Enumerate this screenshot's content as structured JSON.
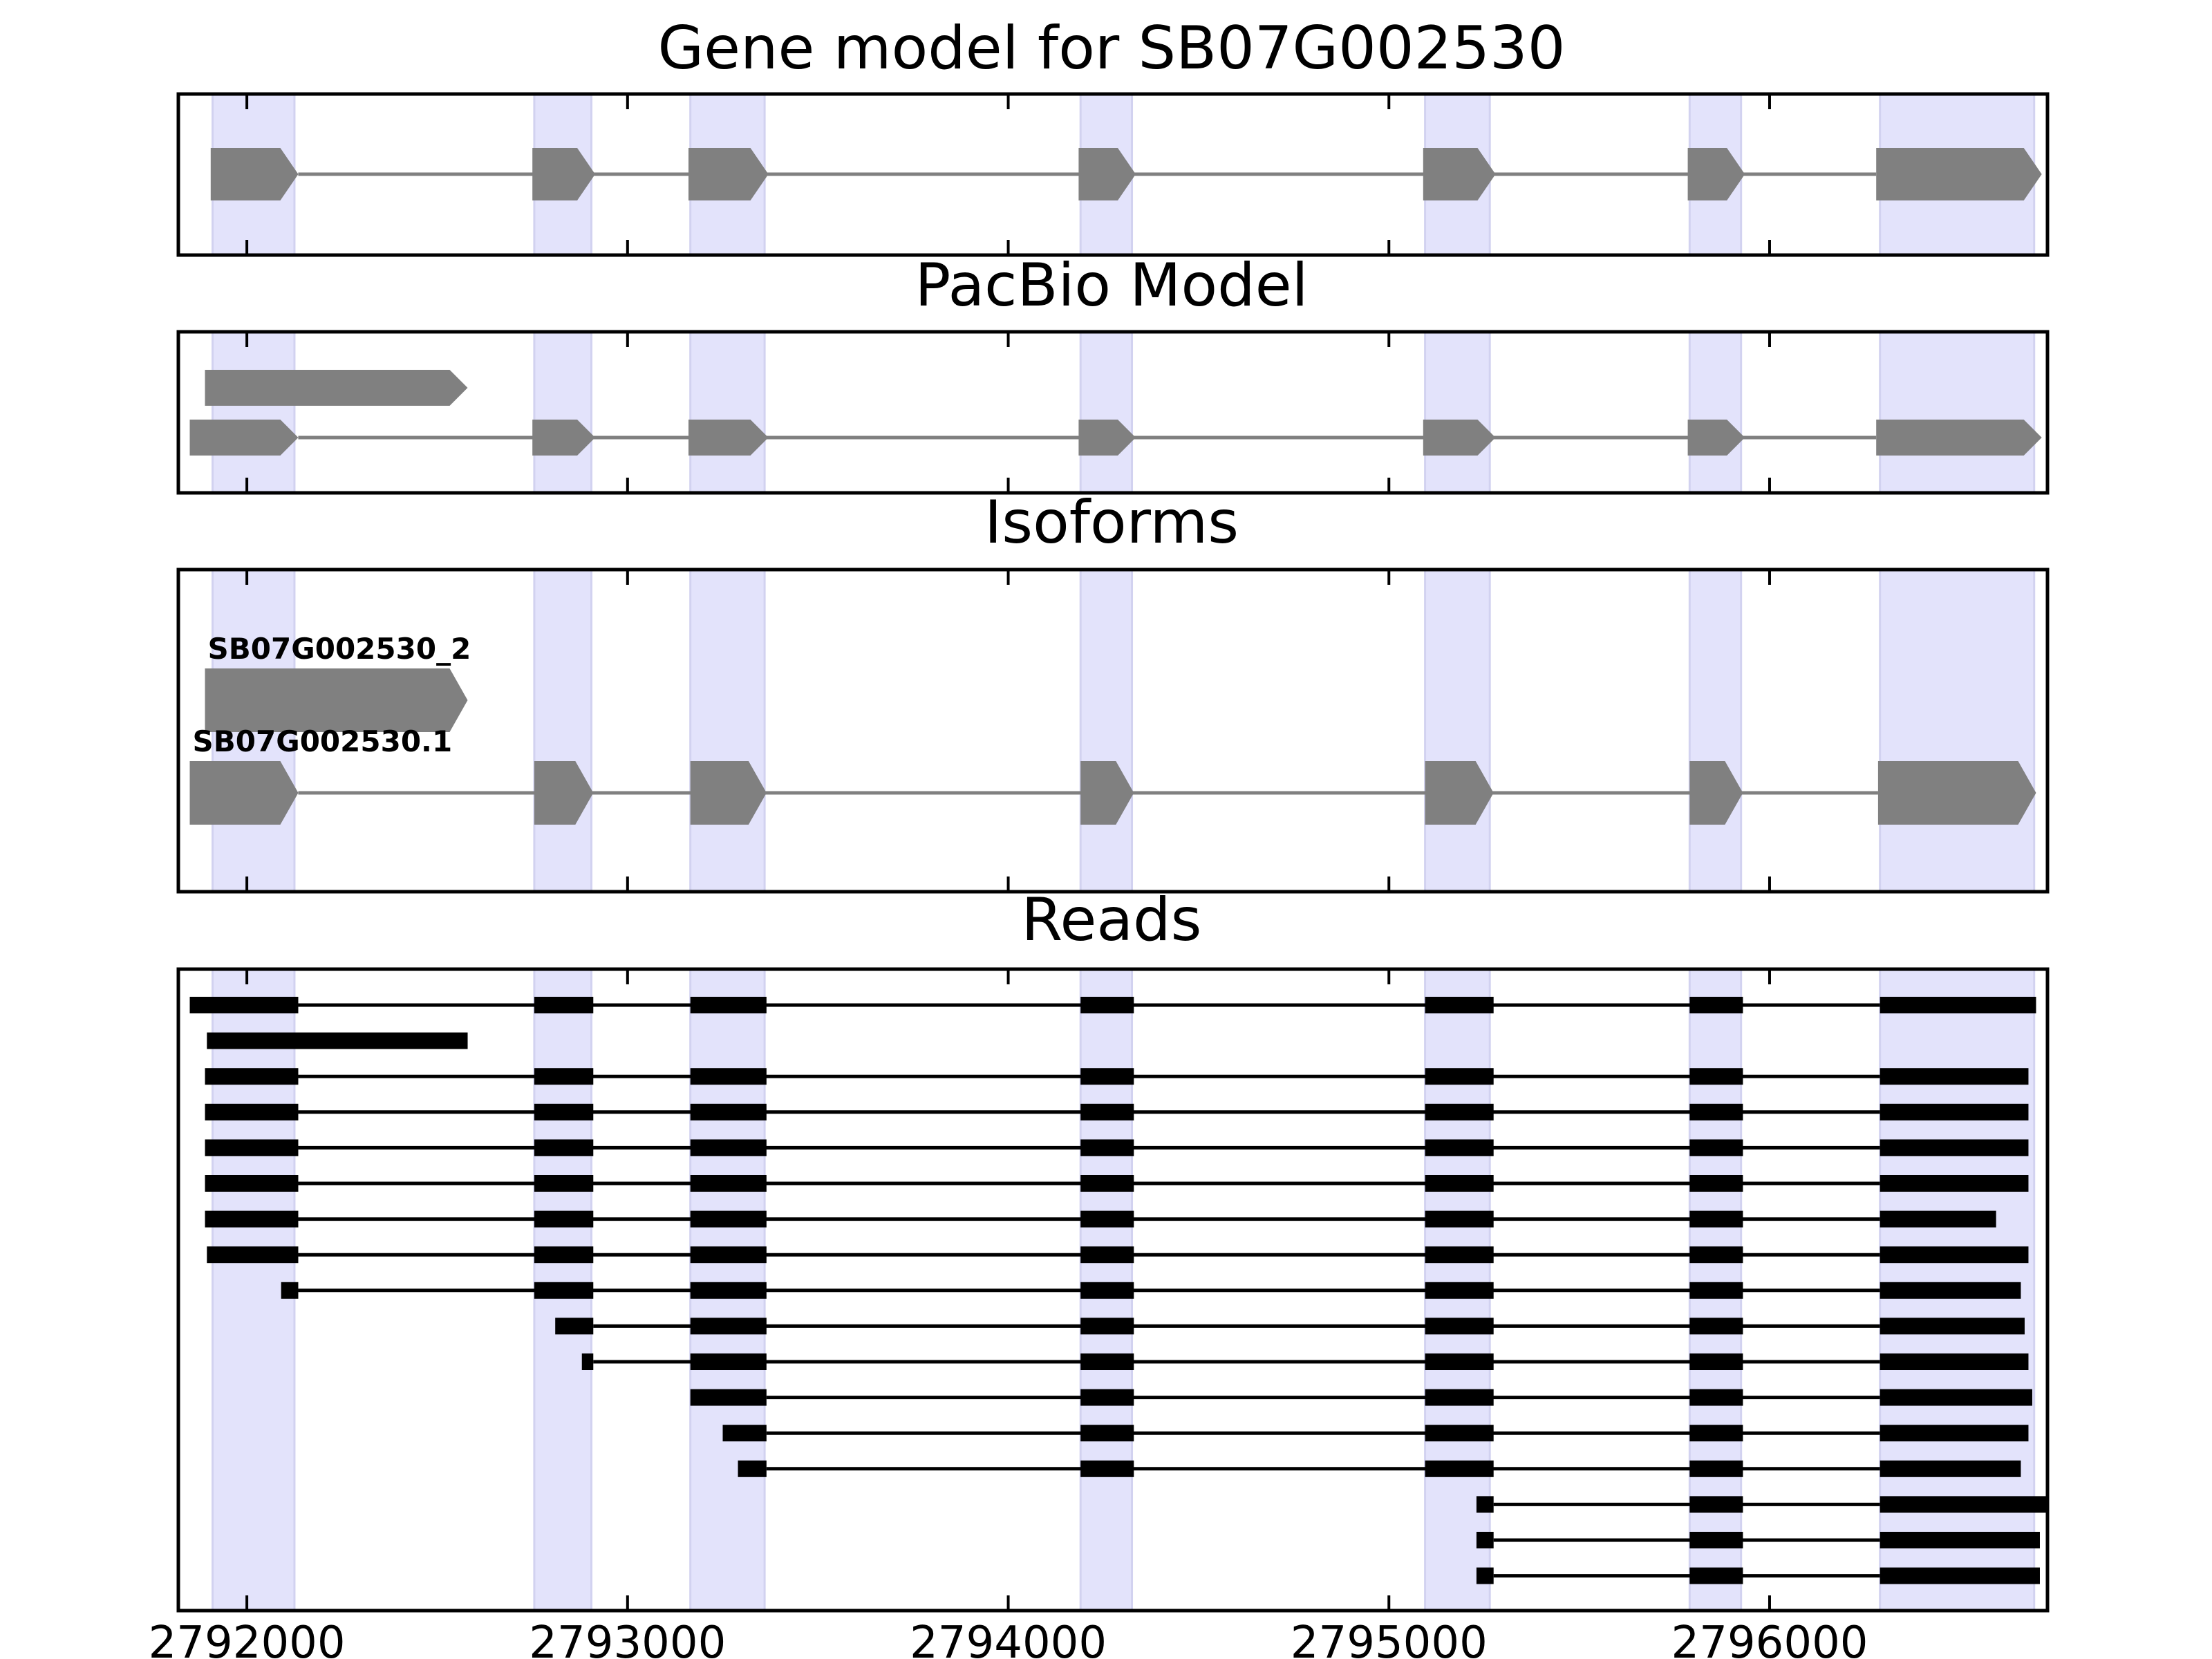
{
  "chart_data": {
    "type": "gene-structure",
    "figure_title": "Gene model for SB07G002530",
    "xlim": [
      2791820,
      2796730
    ],
    "x_ticks": [
      2792000,
      2793000,
      2794000,
      2795000,
      2796000
    ],
    "x_tick_labels": [
      "2792000",
      "2793000",
      "2794000",
      "2795000",
      "2796000"
    ],
    "highlight_color": "#e3e3fb",
    "exon_color": "#808080",
    "read_color": "#000000",
    "highlight_regions": [
      [
        2791910,
        2792125
      ],
      [
        2792755,
        2792905
      ],
      [
        2793165,
        2793360
      ],
      [
        2794190,
        2794325
      ],
      [
        2795095,
        2795265
      ],
      [
        2795790,
        2795925
      ],
      [
        2796290,
        2796695
      ]
    ],
    "panels": [
      {
        "id": "gene_model",
        "title": "Gene model for SB07G002530",
        "strand": "+",
        "tracks": [
          {
            "label": "",
            "exons": [
              [
                2791905,
                2792135
              ],
              [
                2792750,
                2792915
              ],
              [
                2793160,
                2793370
              ],
              [
                2794185,
                2794335
              ],
              [
                2795090,
                2795280
              ],
              [
                2795785,
                2795935
              ],
              [
                2796280,
                2796715
              ]
            ]
          }
        ]
      },
      {
        "id": "pacbio_model",
        "title": "PacBio Model",
        "strand": "+",
        "tracks": [
          {
            "label": "",
            "exons": [
              [
                2791890,
                2792580
              ]
            ]
          },
          {
            "label": "",
            "exons": [
              [
                2791850,
                2792135
              ],
              [
                2792750,
                2792915
              ],
              [
                2793160,
                2793370
              ],
              [
                2794185,
                2794335
              ],
              [
                2795090,
                2795280
              ],
              [
                2795785,
                2795935
              ],
              [
                2796280,
                2796715
              ]
            ]
          }
        ]
      },
      {
        "id": "isoforms",
        "title": "Isoforms",
        "strand": "+",
        "tracks": [
          {
            "label": "SB07G002530_2",
            "exons": [
              [
                2791890,
                2792580
              ]
            ]
          },
          {
            "label": "SB07G002530.1",
            "exons": [
              [
                2791850,
                2792135
              ],
              [
                2792755,
                2792910
              ],
              [
                2793165,
                2793365
              ],
              [
                2794190,
                2794330
              ],
              [
                2795095,
                2795275
              ],
              [
                2795790,
                2795930
              ],
              [
                2796285,
                2796700
              ]
            ]
          }
        ]
      },
      {
        "id": "reads",
        "title": "Reads",
        "strand": "+",
        "tracks": [
          {
            "label": "",
            "exons": [
              [
                2791850,
                2792135
              ],
              [
                2792755,
                2792910
              ],
              [
                2793165,
                2793365
              ],
              [
                2794190,
                2794330
              ],
              [
                2795095,
                2795275
              ],
              [
                2795790,
                2795930
              ],
              [
                2796290,
                2796700
              ]
            ]
          },
          {
            "label": "",
            "exons": [
              [
                2791895,
                2792580
              ]
            ]
          },
          {
            "label": "",
            "exons": [
              [
                2791890,
                2792135
              ],
              [
                2792755,
                2792910
              ],
              [
                2793165,
                2793365
              ],
              [
                2794190,
                2794330
              ],
              [
                2795095,
                2795275
              ],
              [
                2795790,
                2795930
              ],
              [
                2796290,
                2796680
              ]
            ]
          },
          {
            "label": "",
            "exons": [
              [
                2791890,
                2792135
              ],
              [
                2792755,
                2792910
              ],
              [
                2793165,
                2793365
              ],
              [
                2794190,
                2794330
              ],
              [
                2795095,
                2795275
              ],
              [
                2795790,
                2795930
              ],
              [
                2796290,
                2796680
              ]
            ]
          },
          {
            "label": "",
            "exons": [
              [
                2791890,
                2792135
              ],
              [
                2792755,
                2792910
              ],
              [
                2793165,
                2793365
              ],
              [
                2794190,
                2794330
              ],
              [
                2795095,
                2795275
              ],
              [
                2795790,
                2795930
              ],
              [
                2796290,
                2796680
              ]
            ]
          },
          {
            "label": "",
            "exons": [
              [
                2791890,
                2792135
              ],
              [
                2792755,
                2792910
              ],
              [
                2793165,
                2793365
              ],
              [
                2794190,
                2794330
              ],
              [
                2795095,
                2795275
              ],
              [
                2795790,
                2795930
              ],
              [
                2796290,
                2796680
              ]
            ]
          },
          {
            "label": "",
            "exons": [
              [
                2791890,
                2792135
              ],
              [
                2792755,
                2792910
              ],
              [
                2793165,
                2793365
              ],
              [
                2794190,
                2794330
              ],
              [
                2795095,
                2795275
              ],
              [
                2795790,
                2795930
              ],
              [
                2796290,
                2796595
              ]
            ]
          },
          {
            "label": "",
            "exons": [
              [
                2791895,
                2792135
              ],
              [
                2792755,
                2792910
              ],
              [
                2793165,
                2793365
              ],
              [
                2794190,
                2794330
              ],
              [
                2795095,
                2795275
              ],
              [
                2795790,
                2795930
              ],
              [
                2796290,
                2796680
              ]
            ]
          },
          {
            "label": "",
            "exons": [
              [
                2792090,
                2792135
              ],
              [
                2792755,
                2792910
              ],
              [
                2793165,
                2793365
              ],
              [
                2794190,
                2794330
              ],
              [
                2795095,
                2795275
              ],
              [
                2795790,
                2795930
              ],
              [
                2796290,
                2796660
              ]
            ]
          },
          {
            "label": "",
            "exons": [
              [
                2792810,
                2792910
              ],
              [
                2793165,
                2793365
              ],
              [
                2794190,
                2794330
              ],
              [
                2795095,
                2795275
              ],
              [
                2795790,
                2795930
              ],
              [
                2796290,
                2796670
              ]
            ]
          },
          {
            "label": "",
            "exons": [
              [
                2792880,
                2792910
              ],
              [
                2793165,
                2793365
              ],
              [
                2794190,
                2794330
              ],
              [
                2795095,
                2795275
              ],
              [
                2795790,
                2795930
              ],
              [
                2796290,
                2796680
              ]
            ]
          },
          {
            "label": "",
            "exons": [
              [
                2793165,
                2793365
              ],
              [
                2794190,
                2794330
              ],
              [
                2795095,
                2795275
              ],
              [
                2795790,
                2795930
              ],
              [
                2796290,
                2796690
              ]
            ]
          },
          {
            "label": "",
            "exons": [
              [
                2793250,
                2793365
              ],
              [
                2794190,
                2794330
              ],
              [
                2795095,
                2795275
              ],
              [
                2795790,
                2795930
              ],
              [
                2796290,
                2796680
              ]
            ]
          },
          {
            "label": "",
            "exons": [
              [
                2793290,
                2793365
              ],
              [
                2794190,
                2794330
              ],
              [
                2795095,
                2795275
              ],
              [
                2795790,
                2795930
              ],
              [
                2796290,
                2796660
              ]
            ]
          },
          {
            "label": "",
            "exons": [
              [
                2795230,
                2795275
              ],
              [
                2795790,
                2795930
              ],
              [
                2796290,
                2796730
              ]
            ]
          },
          {
            "label": "",
            "exons": [
              [
                2795230,
                2795275
              ],
              [
                2795790,
                2795930
              ],
              [
                2796290,
                2796710
              ]
            ]
          },
          {
            "label": "",
            "exons": [
              [
                2795230,
                2795275
              ],
              [
                2795790,
                2795930
              ],
              [
                2796290,
                2796710
              ]
            ]
          }
        ]
      }
    ]
  }
}
